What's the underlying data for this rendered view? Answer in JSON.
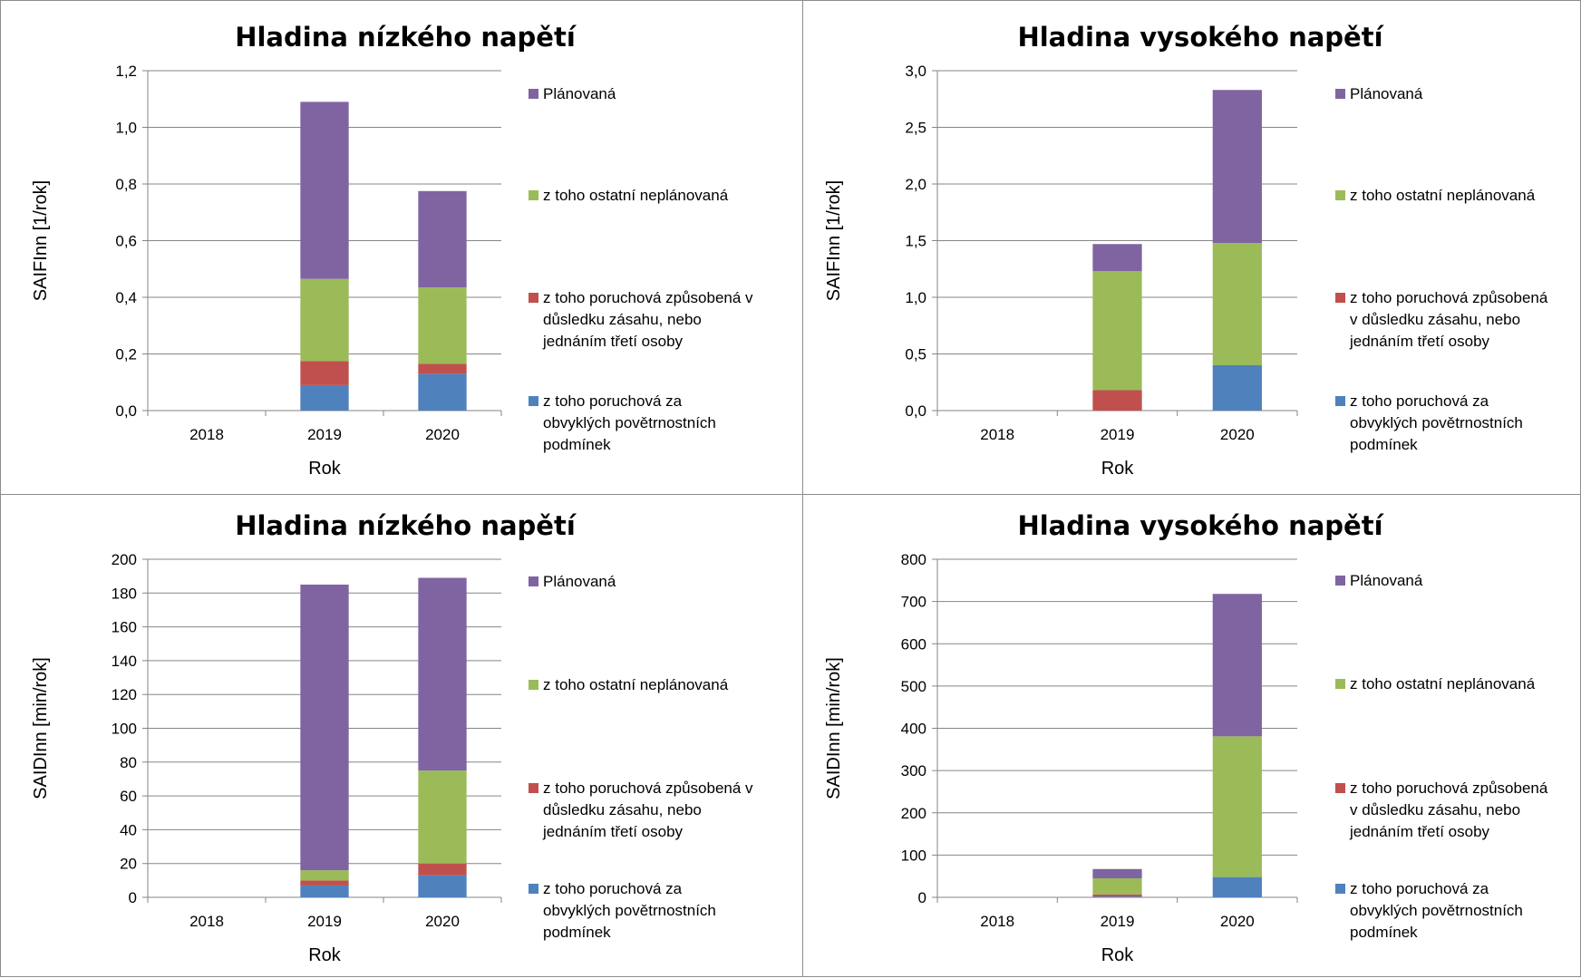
{
  "colors": {
    "planned": "#8064a2",
    "other_unplanned": "#9bbb59",
    "third_party": "#c0504d",
    "weather": "#4f81bd"
  },
  "chart_data": [
    {
      "type": "bar",
      "stacked": true,
      "title": "Hladina nízkého napětí",
      "xlabel": "Rok",
      "ylabel": "SAIFInn [1/rok]",
      "ylim": [
        0,
        1.2
      ],
      "yticks": [
        "0,0",
        "0,2",
        "0,4",
        "0,6",
        "0,8",
        "1,0",
        "1,2"
      ],
      "categories": [
        "2018",
        "2019",
        "2020"
      ],
      "grid": true,
      "legend": "right",
      "series": [
        {
          "name": "z toho poruchová za obvyklých povětrnostních podmínek",
          "color": "#4f81bd",
          "values": [
            0,
            0.09,
            0.13
          ]
        },
        {
          "name": "z toho poruchová způsobená v důsledku zásahu, nebo jednáním třetí osoby",
          "color": "#c0504d",
          "values": [
            0,
            0.085,
            0.035
          ]
        },
        {
          "name": "z toho ostatní neplánovaná",
          "color": "#9bbb59",
          "values": [
            0,
            0.29,
            0.27
          ]
        },
        {
          "name": "Plánovaná",
          "color": "#8064a2",
          "values": [
            0,
            0.625,
            0.34
          ]
        }
      ]
    },
    {
      "type": "bar",
      "stacked": true,
      "title": "Hladina vysokého napětí",
      "xlabel": "Rok",
      "ylabel": "SAIFInn [1/rok]",
      "ylim": [
        0,
        3.0
      ],
      "yticks": [
        "0,0",
        "0,5",
        "1,0",
        "1,5",
        "2,0",
        "2,5",
        "3,0"
      ],
      "categories": [
        "2018",
        "2019",
        "2020"
      ],
      "grid": true,
      "legend": "right",
      "series": [
        {
          "name": "z toho poruchová za obvyklých povětrnostních podmínek",
          "color": "#4f81bd",
          "values": [
            0,
            0,
            0.4
          ]
        },
        {
          "name": "z toho poruchová způsobená v důsledku zásahu, nebo jednáním třetí osoby",
          "color": "#c0504d",
          "values": [
            0,
            0.18,
            0
          ]
        },
        {
          "name": "z toho ostatní neplánovaná",
          "color": "#9bbb59",
          "values": [
            0,
            1.05,
            1.08
          ]
        },
        {
          "name": "Plánovaná",
          "color": "#8064a2",
          "values": [
            0,
            0.24,
            1.35
          ]
        }
      ]
    },
    {
      "type": "bar",
      "stacked": true,
      "title": "Hladina nízkého napětí",
      "xlabel": "Rok",
      "ylabel": "SAIDInn [min/rok]",
      "ylim": [
        0,
        200
      ],
      "yticks": [
        "0",
        "20",
        "40",
        "60",
        "80",
        "100",
        "120",
        "140",
        "160",
        "180",
        "200"
      ],
      "categories": [
        "2018",
        "2019",
        "2020"
      ],
      "grid": true,
      "legend": "right",
      "series": [
        {
          "name": "z toho poruchová za obvyklých povětrnostních podmínek",
          "color": "#4f81bd",
          "values": [
            0,
            7,
            13
          ]
        },
        {
          "name": "z toho poruchová způsobená v důsledku zásahu, nebo jednáním třetí osoby",
          "color": "#c0504d",
          "values": [
            0,
            3,
            7
          ]
        },
        {
          "name": "z toho ostatní neplánovaná",
          "color": "#9bbb59",
          "values": [
            0,
            6,
            55
          ]
        },
        {
          "name": "Plánovaná",
          "color": "#8064a2",
          "values": [
            0,
            169,
            114
          ]
        }
      ]
    },
    {
      "type": "bar",
      "stacked": true,
      "title": "Hladina vysokého napětí",
      "xlabel": "Rok",
      "ylabel": "SAIDInn [min/rok]",
      "ylim": [
        0,
        800
      ],
      "yticks": [
        "0",
        "100",
        "200",
        "300",
        "400",
        "500",
        "600",
        "700",
        "800"
      ],
      "categories": [
        "2018",
        "2019",
        "2020"
      ],
      "grid": true,
      "legend": "right",
      "series": [
        {
          "name": "z toho poruchová za obvyklých povětrnostních podmínek",
          "color": "#4f81bd",
          "values": [
            0,
            2,
            48
          ]
        },
        {
          "name": "z toho poruchová způsobená v důsledku zásahu, nebo jednáním třetí osoby",
          "color": "#c0504d",
          "values": [
            0,
            5,
            0
          ]
        },
        {
          "name": "z toho ostatní neplánovaná",
          "color": "#9bbb59",
          "values": [
            0,
            38,
            333
          ]
        },
        {
          "name": "Plánovaná",
          "color": "#8064a2",
          "values": [
            0,
            22,
            337
          ]
        }
      ]
    }
  ]
}
